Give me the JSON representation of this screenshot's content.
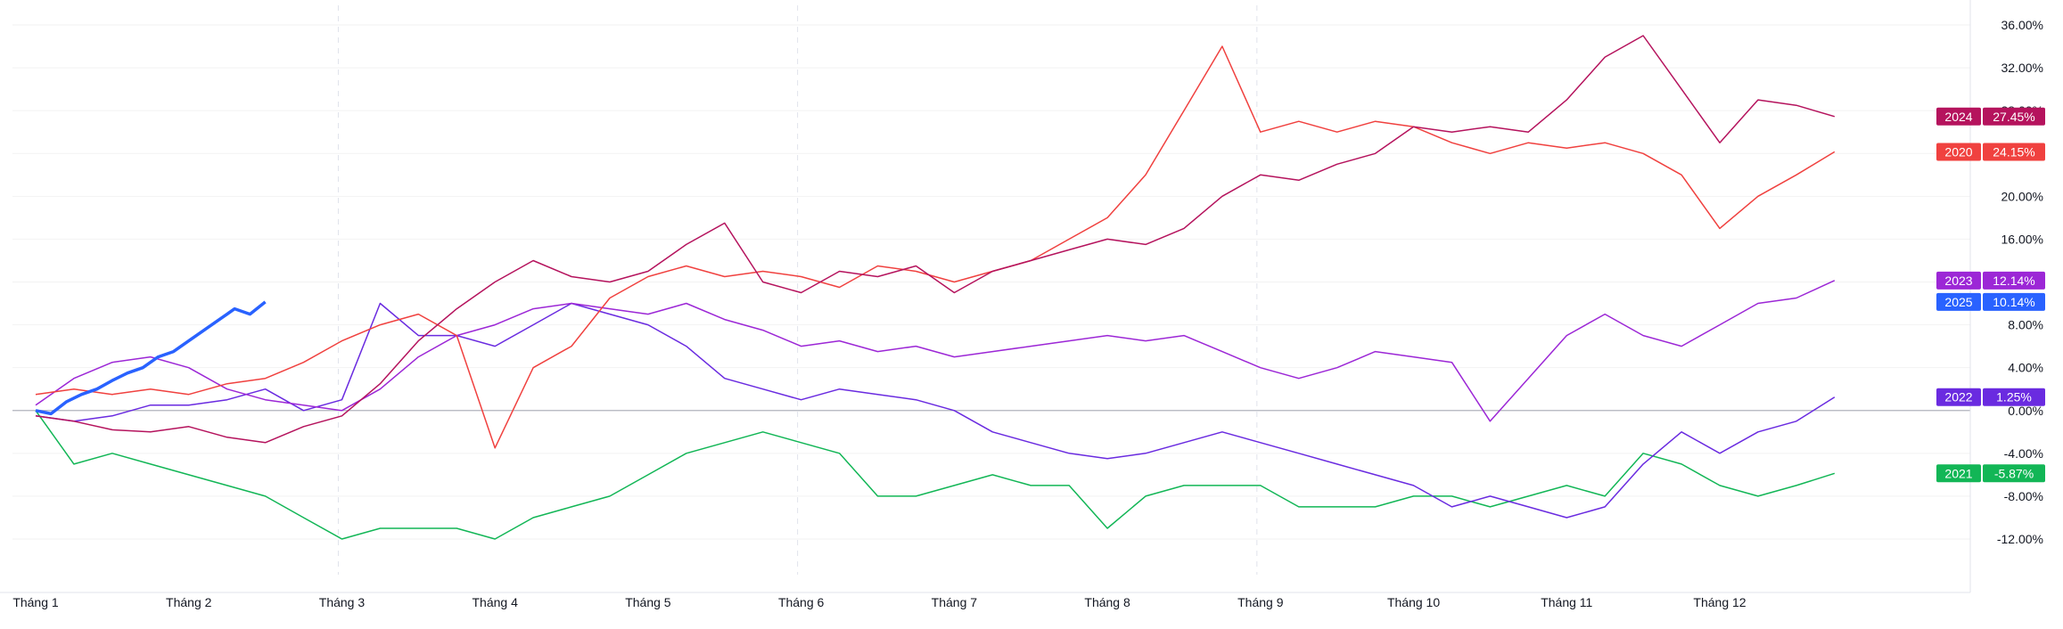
{
  "chart_data": {
    "type": "line",
    "title": "",
    "xlabel": "",
    "ylabel": "",
    "x_tick_labels": [
      "Tháng 1",
      "Tháng 2",
      "Tháng 3",
      "Tháng 4",
      "Tháng 5",
      "Tháng 6",
      "Tháng 7",
      "Tháng 8",
      "Tháng 9",
      "Tháng 10",
      "Tháng 11",
      "Tháng 12"
    ],
    "y_tick_labels": [
      "36.00%",
      "32.00%",
      "28.00%",
      "24.00%",
      "20.00%",
      "16.00%",
      "12.00%",
      "8.00%",
      "4.00%",
      "0.00%",
      "-4.00%",
      "-8.00%",
      "-12.00%"
    ],
    "y_ticks": [
      36,
      32,
      28,
      24,
      20,
      16,
      12,
      8,
      4,
      0,
      -4,
      -8,
      -12
    ],
    "ylim": [
      -16,
      38
    ],
    "xlim": [
      0,
      12.4
    ],
    "grid": true,
    "legend_position": "right",
    "series": [
      {
        "name": "2024",
        "end_label": "27.45%",
        "color": "#b5135d",
        "x": [
          0,
          0.25,
          0.5,
          0.75,
          1,
          1.25,
          1.5,
          1.75,
          2,
          2.25,
          2.5,
          2.75,
          3,
          3.25,
          3.5,
          3.75,
          4,
          4.25,
          4.5,
          4.75,
          5,
          5.25,
          5.5,
          5.75,
          6,
          6.25,
          6.5,
          6.75,
          7,
          7.25,
          7.5,
          7.75,
          8,
          8.25,
          8.5,
          8.75,
          9,
          9.25,
          9.5,
          9.75,
          10,
          10.25,
          10.5,
          10.75,
          11,
          11.25,
          11.5,
          11.75
        ],
        "y": [
          -0.5,
          -1,
          -1.8,
          -2,
          -1.5,
          -2.5,
          -3,
          -1.5,
          -0.5,
          2.5,
          6.5,
          9.5,
          12,
          14,
          12.5,
          12,
          13,
          15.5,
          17.5,
          12,
          11,
          13,
          12.5,
          13.5,
          11,
          13,
          14,
          15,
          16,
          15.5,
          17,
          20,
          22,
          21.5,
          23,
          24,
          26.5,
          26,
          26.5,
          26,
          29,
          33,
          35,
          30,
          25,
          29,
          28.5,
          27.45
        ]
      },
      {
        "name": "2020",
        "end_label": "24.15%",
        "color": "#f0413f",
        "x": [
          0,
          0.25,
          0.5,
          0.75,
          1,
          1.25,
          1.5,
          1.75,
          2,
          2.25,
          2.5,
          2.75,
          3,
          3.25,
          3.5,
          3.75,
          4,
          4.25,
          4.5,
          4.75,
          5,
          5.25,
          5.5,
          5.75,
          6,
          6.25,
          6.5,
          6.75,
          7,
          7.25,
          7.5,
          7.75,
          8,
          8.25,
          8.5,
          8.75,
          9,
          9.25,
          9.5,
          9.75,
          10,
          10.25,
          10.5,
          10.75,
          11,
          11.25,
          11.5,
          11.75
        ],
        "y": [
          1.5,
          2,
          1.5,
          2,
          1.5,
          2.5,
          3,
          4.5,
          6.5,
          8,
          9,
          7,
          -3.5,
          4,
          6,
          10.5,
          12.5,
          13.5,
          12.5,
          13,
          12.5,
          11.5,
          13.5,
          13,
          12,
          13,
          14,
          16,
          18,
          22,
          28,
          34,
          26,
          27,
          26,
          27,
          26.5,
          25,
          24,
          25,
          24.5,
          25,
          24,
          22,
          17,
          20,
          22,
          24.15
        ]
      },
      {
        "name": "2023",
        "end_label": "12.14%",
        "color": "#9c27d6",
        "x": [
          0,
          0.25,
          0.5,
          0.75,
          1,
          1.25,
          1.5,
          1.75,
          2,
          2.25,
          2.5,
          2.75,
          3,
          3.25,
          3.5,
          3.75,
          4,
          4.25,
          4.5,
          4.75,
          5,
          5.25,
          5.5,
          5.75,
          6,
          6.25,
          6.5,
          6.75,
          7,
          7.25,
          7.5,
          7.75,
          8,
          8.25,
          8.5,
          8.75,
          9,
          9.25,
          9.5,
          9.75,
          10,
          10.25,
          10.5,
          10.75,
          11,
          11.25,
          11.5,
          11.75
        ],
        "y": [
          0.5,
          3,
          4.5,
          5,
          4,
          2,
          1,
          0.5,
          0,
          2,
          5,
          7,
          8,
          9.5,
          10,
          9.5,
          9,
          10,
          8.5,
          7.5,
          6,
          6.5,
          5.5,
          6,
          5,
          5.5,
          6,
          6.5,
          7,
          6.5,
          7,
          5.5,
          4,
          3,
          4,
          5.5,
          5,
          4.5,
          -1,
          3,
          7,
          9,
          7,
          6,
          8,
          10,
          10.5,
          12.14
        ]
      },
      {
        "name": "2025",
        "end_label": "10.14%",
        "color": "#2962ff",
        "thick": true,
        "x": [
          0,
          0.1,
          0.2,
          0.3,
          0.4,
          0.5,
          0.6,
          0.7,
          0.8,
          0.9,
          1.0,
          1.1,
          1.2,
          1.3,
          1.4,
          1.5
        ],
        "y": [
          0,
          -0.3,
          0.8,
          1.5,
          2,
          2.8,
          3.5,
          4,
          5,
          5.5,
          6.5,
          7.5,
          8.5,
          9.5,
          9,
          10.14
        ]
      },
      {
        "name": "2022",
        "end_label": "1.25%",
        "color": "#6a2be0",
        "x": [
          0,
          0.25,
          0.5,
          0.75,
          1,
          1.25,
          1.5,
          1.75,
          2,
          2.25,
          2.5,
          2.75,
          3,
          3.25,
          3.5,
          3.75,
          4,
          4.25,
          4.5,
          4.75,
          5,
          5.25,
          5.5,
          5.75,
          6,
          6.25,
          6.5,
          6.75,
          7,
          7.25,
          7.5,
          7.75,
          8,
          8.25,
          8.5,
          8.75,
          9,
          9.25,
          9.5,
          9.75,
          10,
          10.25,
          10.5,
          10.75,
          11,
          11.25,
          11.5,
          11.75
        ],
        "y": [
          -0.5,
          -1,
          -0.5,
          0.5,
          0.5,
          1,
          2,
          0,
          1,
          10,
          7,
          7,
          6,
          8,
          10,
          9,
          8,
          6,
          3,
          2,
          1,
          2,
          1.5,
          1,
          0,
          -2,
          -3,
          -4,
          -4.5,
          -4,
          -3,
          -2,
          -3,
          -4,
          -5,
          -6,
          -7,
          -9,
          -8,
          -9,
          -10,
          -9,
          -5,
          -2,
          -4,
          -2,
          -1,
          1.25
        ]
      },
      {
        "name": "2021",
        "end_label": "-5.87%",
        "color": "#12b656",
        "x": [
          0,
          0.25,
          0.5,
          0.75,
          1,
          1.25,
          1.5,
          1.75,
          2,
          2.25,
          2.5,
          2.75,
          3,
          3.25,
          3.5,
          3.75,
          4,
          4.25,
          4.5,
          4.75,
          5,
          5.25,
          5.5,
          5.75,
          6,
          6.25,
          6.5,
          6.75,
          7,
          7.25,
          7.5,
          7.75,
          8,
          8.25,
          8.5,
          8.75,
          9,
          9.25,
          9.5,
          9.75,
          10,
          10.25,
          10.5,
          10.75,
          11,
          11.25,
          11.5,
          11.75
        ],
        "y": [
          0,
          -5,
          -4,
          -5,
          -6,
          -7,
          -8,
          -10,
          -12,
          -11,
          -11,
          -11,
          -12,
          -10,
          -9,
          -8,
          -6,
          -4,
          -3,
          -2,
          -3,
          -4,
          -8,
          -8,
          -7,
          -6,
          -7,
          -7,
          -11,
          -8,
          -7,
          -7,
          -7,
          -9,
          -9,
          -9,
          -8,
          -8,
          -9,
          -8,
          -7,
          -8,
          -4,
          -5,
          -7,
          -8,
          -7,
          -5.87
        ]
      }
    ]
  }
}
